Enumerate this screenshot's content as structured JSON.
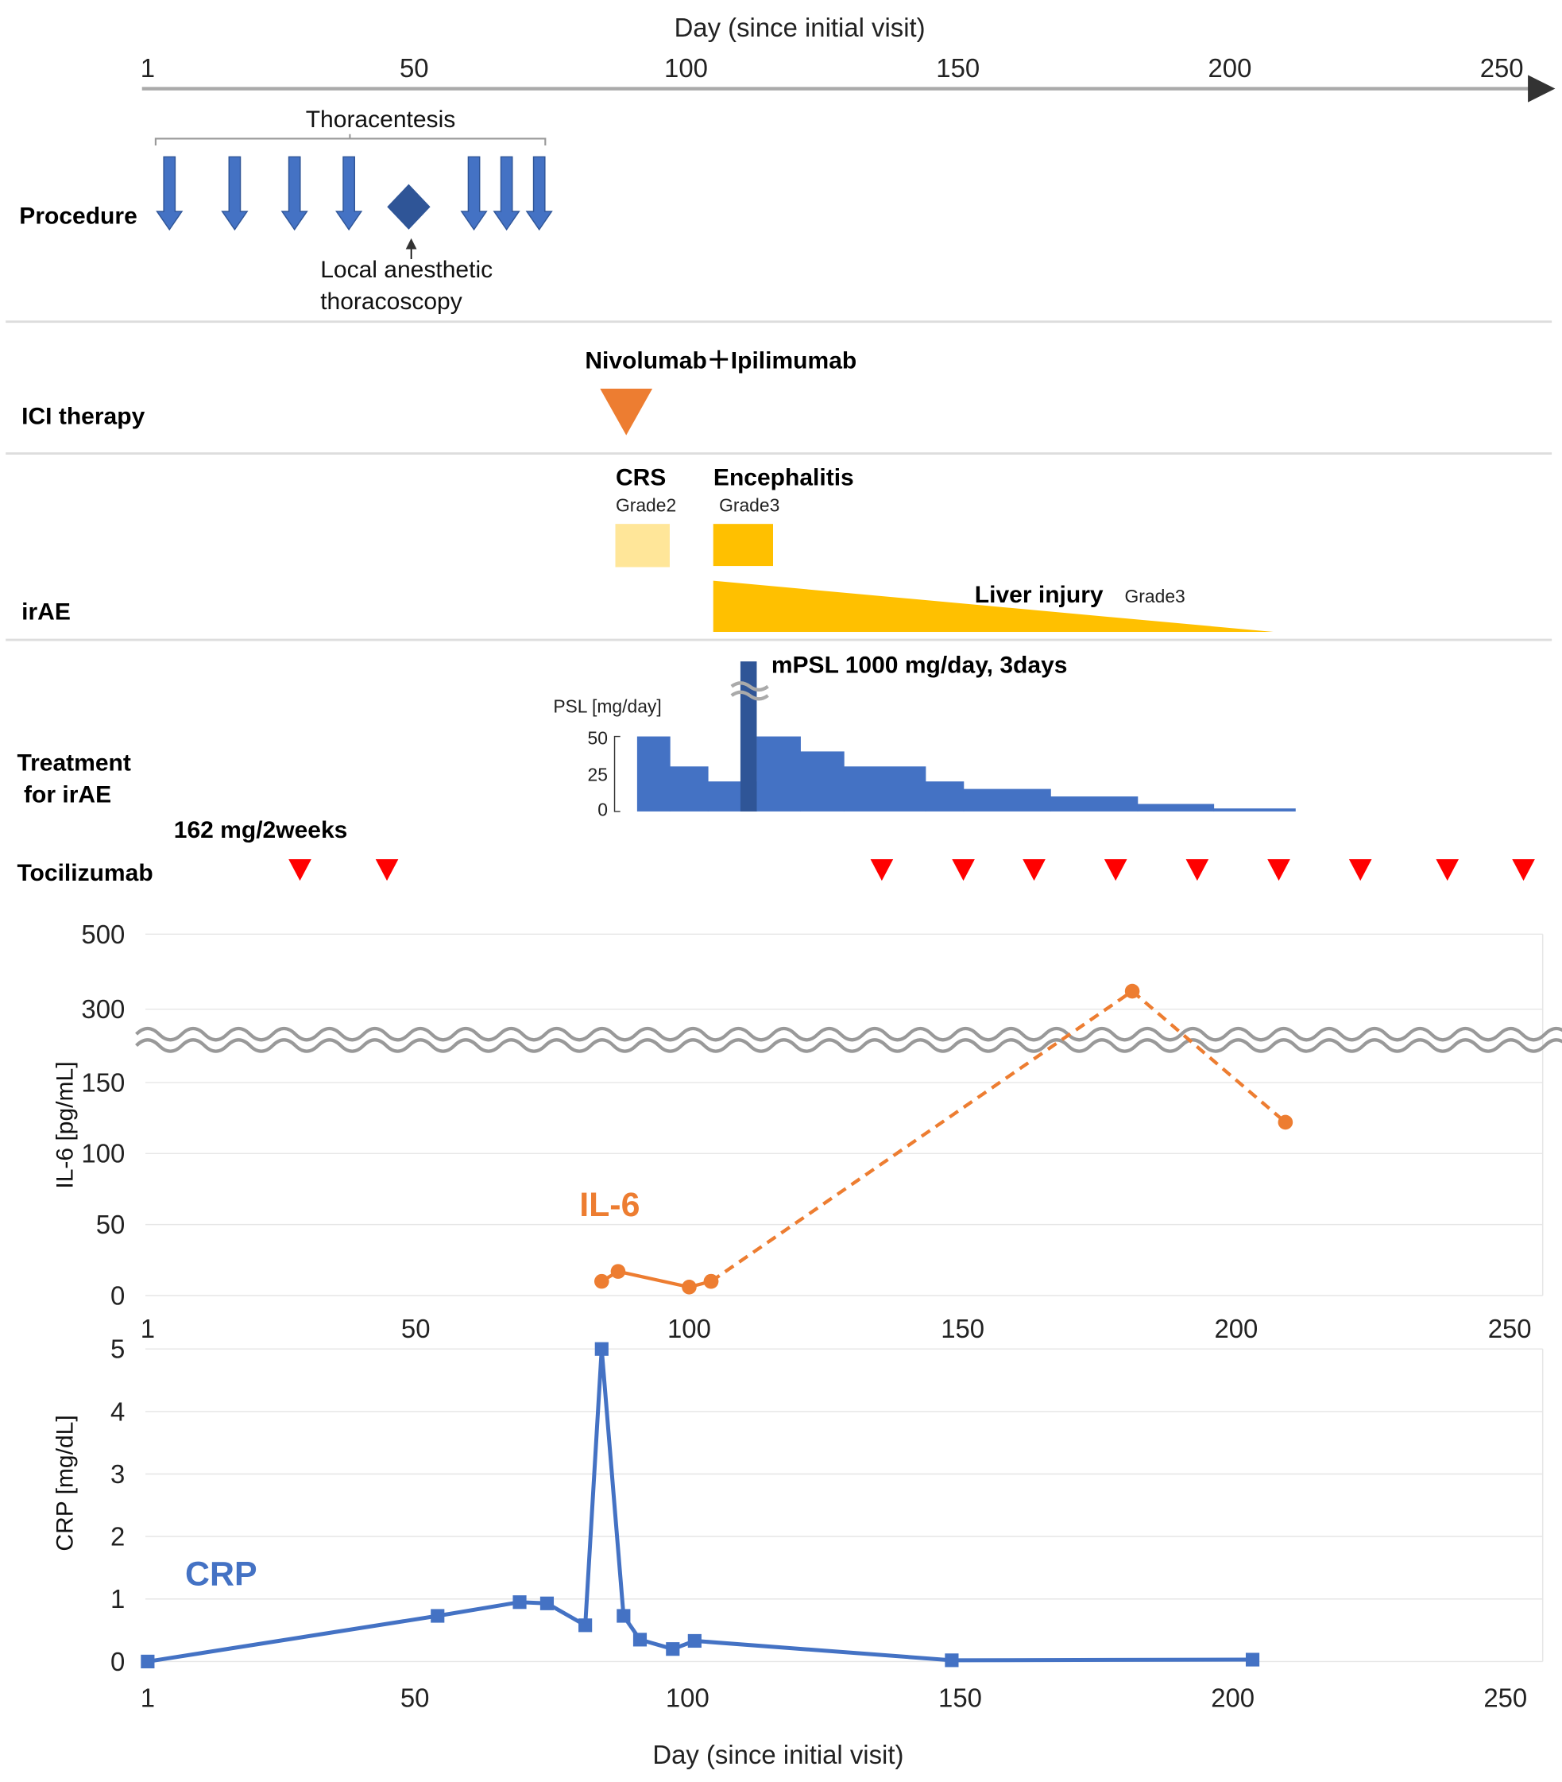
{
  "colors": {
    "arrow": "#4472c4",
    "diamond": "#2f5597",
    "ici": "#ed7d31",
    "crs": "#ffe699",
    "enceph": "#ffc000",
    "liver": "#ffc000",
    "psl": "#4472c4",
    "mpsl": "#2f5597",
    "toci": "#ff0000",
    "il6": "#ed7d31",
    "crp": "#4472c4"
  },
  "timeline": {
    "title": "Day (since initial visit)",
    "ticks": [
      "1",
      "50",
      "100",
      "150",
      "200",
      "250"
    ],
    "tick_days": [
      1,
      50,
      100,
      150,
      200,
      250
    ]
  },
  "rows": {
    "procedure": "Procedure",
    "ici": "ICI therapy",
    "irae": "irAE",
    "treatment_line1": "Treatment",
    "treatment_line2": "for irAE",
    "tocilizumab": "Tocilizumab"
  },
  "procedure": {
    "thoracentesis_label": "Thoracentesis",
    "thoracentesis_days": [
      5,
      17,
      28,
      38,
      61,
      67,
      73
    ],
    "thoracoscopy_day": 49,
    "thoracoscopy_label_1": "Local anesthetic",
    "thoracoscopy_label_2": "thoracoscopy"
  },
  "ici": {
    "label": "Nivolumab＋Ipilimumab",
    "day": 89
  },
  "irae": {
    "crs": {
      "label": "CRS",
      "grade": "Grade2",
      "start": 87,
      "end": 97
    },
    "encephalitis": {
      "label": "Encephalitis",
      "grade": "Grade3",
      "start": 105,
      "end": 116
    },
    "liver": {
      "label": "Liver injury",
      "grade": "Grade3",
      "start": 105,
      "end": 208
    }
  },
  "treatment": {
    "mpsl_label": "mPSL 1000 mg/day, 3days",
    "mpsl_days": [
      110,
      113
    ],
    "psl_axis_label": "PSL [mg/day]",
    "psl_ticks": [
      "50",
      "25",
      "0"
    ],
    "psl_steps": [
      {
        "start": 91,
        "end": 97,
        "dose": 50
      },
      {
        "start": 97,
        "end": 104,
        "dose": 30
      },
      {
        "start": 104,
        "end": 110,
        "dose": 20
      },
      {
        "start": 110,
        "end": 113,
        "dose": 20
      },
      {
        "start": 113,
        "end": 121,
        "dose": 50
      },
      {
        "start": 121,
        "end": 129,
        "dose": 40
      },
      {
        "start": 129,
        "end": 144,
        "dose": 30
      },
      {
        "start": 144,
        "end": 151,
        "dose": 20
      },
      {
        "start": 151,
        "end": 167,
        "dose": 15
      },
      {
        "start": 167,
        "end": 183,
        "dose": 10
      },
      {
        "start": 183,
        "end": 197,
        "dose": 5
      },
      {
        "start": 197,
        "end": 212,
        "dose": 2
      }
    ]
  },
  "tocilizumab": {
    "dose_label": "162 mg/2weeks",
    "days": [
      29,
      45,
      136,
      151,
      164,
      179,
      194,
      209,
      224,
      240,
      254
    ]
  },
  "chart_data": [
    {
      "type": "line",
      "title": "",
      "series_label": "IL-6",
      "xlabel": "",
      "ylabel": "IL-6 [pg/mL]",
      "xlim": [
        1,
        250
      ],
      "x_ticks": [
        "1",
        "50",
        "100",
        "150",
        "200",
        "250"
      ],
      "y_ticks": [
        "0",
        "50",
        "100",
        "150",
        "300",
        "500"
      ],
      "y_break": [
        170,
        300
      ],
      "grid": true,
      "series": [
        {
          "name": "IL-6 (measured)",
          "style": "solid",
          "x": [
            84,
            87,
            100,
            104
          ],
          "y": [
            10,
            17,
            6,
            10
          ]
        },
        {
          "name": "IL-6 (interpolated)",
          "style": "dashed",
          "x": [
            104,
            181,
            209
          ],
          "y": [
            10,
            348,
            122
          ]
        }
      ]
    },
    {
      "type": "line",
      "title": "",
      "series_label": "CRP",
      "xlabel": "Day (since initial visit)",
      "ylabel": "CRP [mg/dL]",
      "xlim": [
        1,
        250
      ],
      "ylim": [
        0,
        5
      ],
      "x_ticks": [
        "1",
        "50",
        "100",
        "150",
        "200",
        "250"
      ],
      "y_ticks": [
        "0",
        "1",
        "2",
        "3",
        "4",
        "5"
      ],
      "grid": true,
      "series": [
        {
          "name": "CRP",
          "x": [
            1,
            54,
            69,
            74,
            81,
            84,
            88,
            91,
            97,
            101,
            148,
            203
          ],
          "y": [
            0,
            0.73,
            0.95,
            0.93,
            0.58,
            5.0,
            0.73,
            0.35,
            0.2,
            0.33,
            0.02,
            0.03
          ]
        }
      ]
    }
  ]
}
